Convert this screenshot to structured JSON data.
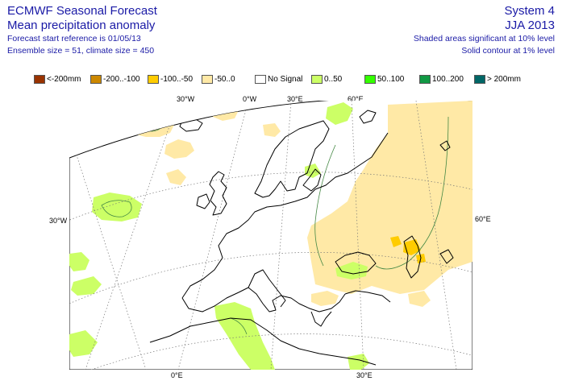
{
  "header": {
    "left_line1": "ECMWF Seasonal Forecast",
    "left_line2": "Mean precipitation anomaly",
    "left_line3": "Forecast start reference is 01/05/13",
    "left_line4": "Ensemble size = 51, climate size = 450",
    "right_line1": "System 4",
    "right_line2": "JJA 2013",
    "right_line3": "Shaded areas significant at 10% level",
    "right_line4": "Solid contour at 1% level"
  },
  "legend": [
    {
      "label": "<-200mm",
      "color": "#993300"
    },
    {
      "label": "-200..-100",
      "color": "#cc8800"
    },
    {
      "label": "-100..-50",
      "color": "#ffcc00"
    },
    {
      "label": "-50..0",
      "color": "#ffe9a6"
    },
    {
      "label": "No Signal",
      "color": "#ffffff"
    },
    {
      "label": "0..50",
      "color": "#ccff66"
    },
    {
      "label": "50..100",
      "color": "#33ff00"
    },
    {
      "label": "100..200",
      "color": "#119944"
    },
    {
      "label": "> 200mm",
      "color": "#006666"
    }
  ],
  "axis_labels": {
    "top": [
      "30°W",
      "0°W",
      "30°E",
      "60°E"
    ],
    "left": [
      "30°W"
    ],
    "right": [
      "60°E"
    ],
    "bottom": [
      "0°E",
      "30°E"
    ]
  },
  "colors": {
    "title_text": "#1a1aa6",
    "dry_light": "#ffe9a6",
    "dry_medium": "#ffcc00",
    "wet_light": "#ccff66",
    "contour": "#448844"
  }
}
